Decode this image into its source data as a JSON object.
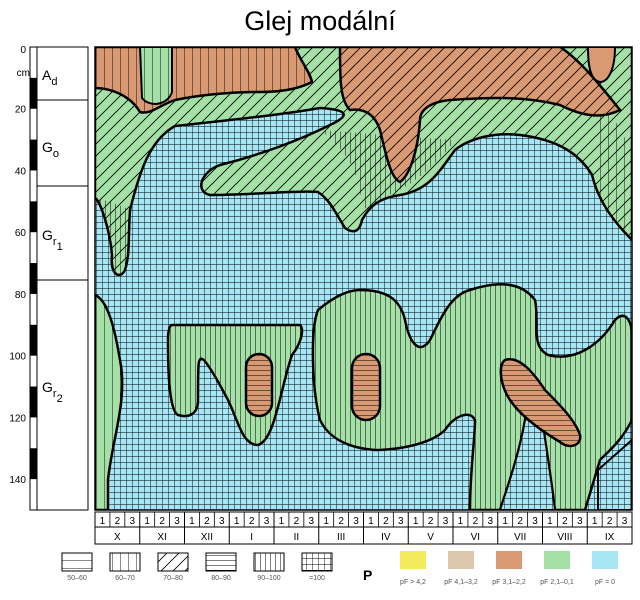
{
  "title": "Glej modální",
  "depth_axis": {
    "unit": "cm",
    "ticks": [
      "0",
      "20",
      "40",
      "60",
      "80",
      "100",
      "120",
      "140"
    ]
  },
  "horizons": [
    {
      "base": "A",
      "sub": "d",
      "sub2": ""
    },
    {
      "base": "G",
      "sub": "o",
      "sub2": ""
    },
    {
      "base": "G",
      "sub": "r",
      "sub2": "1"
    },
    {
      "base": "G",
      "sub": "r",
      "sub2": "2"
    }
  ],
  "months": [
    "X",
    "XI",
    "XII",
    "I",
    "II",
    "III",
    "IV",
    "V",
    "VI",
    "VII",
    "VIII",
    "IX"
  ],
  "decades": [
    "1",
    "2",
    "3"
  ],
  "hatch_legend": [
    {
      "label": "50–60",
      "pattern": "horizontal-wide"
    },
    {
      "label": "60–70",
      "pattern": "vertical-wide"
    },
    {
      "label": "70–80",
      "pattern": "diagonal"
    },
    {
      "label": "80–90",
      "pattern": "horizontal-dense"
    },
    {
      "label": "90–100",
      "pattern": "vertical-dense"
    },
    {
      "label": "=100",
      "pattern": "grid"
    }
  ],
  "hatch_symbol": "P",
  "color_legend": [
    {
      "label": "pF > 4,2",
      "color": "#f2ec5a"
    },
    {
      "label": "pF 4,1–3,2",
      "color": "#dcc7ad"
    },
    {
      "label": "pF 3,1–2,2",
      "color": "#d99a73"
    },
    {
      "label": "pF 2,1–0,1",
      "color": "#a5e0a6"
    },
    {
      "label": "pF = 0",
      "color": "#a6e6f5"
    }
  ],
  "colors": {
    "water": "#a6e6f5",
    "green": "#a5e0a6",
    "brown": "#d99a73"
  }
}
